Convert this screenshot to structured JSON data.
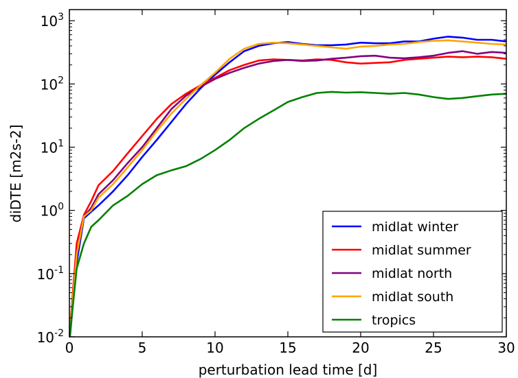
{
  "chart_data": {
    "type": "line",
    "xlabel": "perturbation lead time [d]",
    "ylabel": "diDTE [m2s-2]",
    "xlim": [
      0,
      30
    ],
    "ylim": [
      0.01,
      1500
    ],
    "yscale": "log",
    "grid": false,
    "legend_position": "lower-right",
    "x_ticks": [
      "0",
      "5",
      "10",
      "15",
      "20",
      "25",
      "30"
    ],
    "y_ticks": [
      {
        "base": "10",
        "exp": "-2",
        "value": 0.01
      },
      {
        "base": "10",
        "exp": "-1",
        "value": 0.1
      },
      {
        "base": "10",
        "exp": "0",
        "value": 1
      },
      {
        "base": "10",
        "exp": "1",
        "value": 10
      },
      {
        "base": "10",
        "exp": "2",
        "value": 100
      },
      {
        "base": "10",
        "exp": "3",
        "value": 1000
      }
    ],
    "x": [
      0,
      0.5,
      1,
      1.5,
      2,
      3,
      4,
      5,
      6,
      7,
      8,
      9,
      10,
      11,
      12,
      13,
      14,
      15,
      16,
      17,
      18,
      19,
      20,
      21,
      22,
      23,
      24,
      25,
      26,
      27,
      28,
      29,
      30
    ],
    "series": [
      {
        "name": "midlat winter",
        "color": "#0000ff",
        "values": [
          0.008,
          0.15,
          0.75,
          0.95,
          1.2,
          2.0,
          3.6,
          7.0,
          13,
          25,
          48,
          85,
          140,
          220,
          330,
          400,
          440,
          460,
          430,
          410,
          410,
          420,
          450,
          440,
          440,
          470,
          470,
          520,
          560,
          540,
          500,
          500,
          470
        ]
      },
      {
        "name": "midlat summer",
        "color": "#ff0000",
        "values": [
          0.01,
          0.3,
          0.85,
          1.4,
          2.5,
          4.2,
          8.0,
          15,
          28,
          48,
          70,
          95,
          125,
          165,
          200,
          235,
          245,
          240,
          235,
          245,
          240,
          220,
          210,
          215,
          220,
          240,
          250,
          260,
          270,
          265,
          270,
          265,
          250
        ]
      },
      {
        "name": "midlat north",
        "color": "#800080",
        "values": [
          0.01,
          0.2,
          0.8,
          1.1,
          1.8,
          3.0,
          5.6,
          10,
          20,
          40,
          65,
          90,
          120,
          150,
          180,
          210,
          230,
          240,
          230,
          235,
          250,
          260,
          275,
          280,
          260,
          255,
          265,
          280,
          310,
          330,
          300,
          320,
          310
        ]
      },
      {
        "name": "midlat south",
        "color": "#ffa500",
        "values": [
          0.01,
          0.2,
          0.8,
          1.0,
          1.6,
          2.6,
          4.8,
          9.0,
          18,
          34,
          58,
          95,
          150,
          250,
          360,
          430,
          450,
          440,
          420,
          400,
          380,
          360,
          390,
          400,
          420,
          430,
          460,
          480,
          490,
          470,
          450,
          430,
          420
        ]
      },
      {
        "name": "tropics",
        "color": "#008000",
        "values": [
          0.009,
          0.12,
          0.3,
          0.55,
          0.7,
          1.2,
          1.7,
          2.6,
          3.6,
          4.3,
          5.0,
          6.5,
          9.0,
          13,
          20,
          28,
          38,
          52,
          62,
          72,
          75,
          73,
          74,
          72,
          70,
          72,
          68,
          62,
          58,
          60,
          64,
          68,
          70
        ]
      }
    ]
  }
}
